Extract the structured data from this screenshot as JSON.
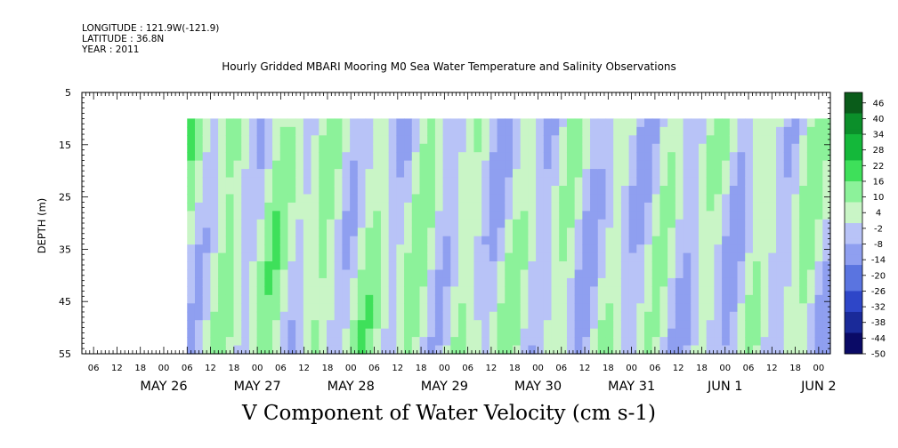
{
  "header": {
    "longitude": "LONGITUDE : 121.9W(-121.9)",
    "latitude": "LATITUDE : 36.8N",
    "year": "YEAR : 2011"
  },
  "chart_data": {
    "type": "heatmap",
    "title": "Hourly Gridded MBARI Mooring M0 Sea Water Temperature and Salinity Observations",
    "xlabel": "V Component of Water Velocity (cm s-1)",
    "ylabel": "DEPTH (m)",
    "y_range": [
      5,
      55
    ],
    "y_inverted": true,
    "y_ticks": [
      5,
      15,
      25,
      35,
      45,
      55
    ],
    "data_depth_range": [
      10,
      55
    ],
    "x_range_hours": [
      "May 25 03:00",
      "Jun 2 03:00"
    ],
    "data_start": "May 26 06:00",
    "hour_tick_labels": [
      "06",
      "12",
      "18",
      "00",
      "06",
      "12",
      "18",
      "00",
      "06",
      "12",
      "18",
      "00",
      "06",
      "12",
      "18",
      "00",
      "06",
      "12",
      "18",
      "00",
      "06",
      "12",
      "18",
      "00",
      "06",
      "12",
      "18",
      "00",
      "06",
      "12",
      "18",
      "00"
    ],
    "date_labels": [
      "MAY 26",
      "MAY 27",
      "MAY 28",
      "MAY 29",
      "MAY 30",
      "MAY 31",
      "JUN 1",
      "JUN 2"
    ],
    "colorbar": {
      "min": -50,
      "max": 50,
      "step": 2,
      "tick_labels": [
        "46",
        "40",
        "34",
        "28",
        "22",
        "16",
        "10",
        "4",
        "-2",
        "-8",
        "-14",
        "-20",
        "-26",
        "-32",
        "-38",
        "-44",
        "-50"
      ],
      "colors_low_to_high": [
        "#0a0a66",
        "#1a2a99",
        "#2e46c8",
        "#5a74e0",
        "#8f9ff0",
        "#b8c3f7",
        "#c9f5c6",
        "#8cf29a",
        "#3ee05a",
        "#14b83a",
        "#0b8f2a",
        "#0a5c1a"
      ]
    },
    "dominant_value_range": [
      -12,
      16
    ]
  }
}
